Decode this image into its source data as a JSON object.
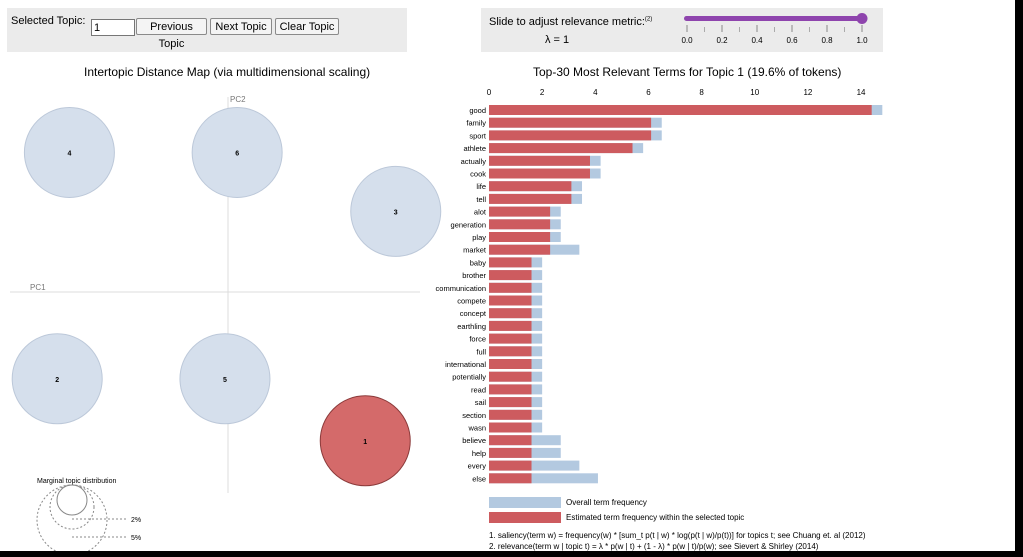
{
  "controls": {
    "selected_topic_label": "Selected Topic:",
    "selected_topic_value": "1",
    "prev_label": "Previous Topic",
    "next_label": "Next Topic",
    "clear_label": "Clear Topic",
    "slider_label": "Slide to adjust relevance metric:",
    "slider_footnote": "(2)",
    "lambda_text": "λ = 1",
    "lambda_value": 1.0,
    "slider_ticks": [
      "0.0",
      "0.2",
      "0.4",
      "0.6",
      "0.8",
      "1.0"
    ]
  },
  "colors": {
    "panel_bg": "#ebebeb",
    "slider_color": "#8e44ad",
    "bubble_fill": "#d5dfec",
    "bubble_stroke": "#bcc8d9",
    "selected_fill": "#d46a6a",
    "selected_stroke": "#8b3a3a",
    "overall_bar": "#b3c9e0",
    "topic_bar": "#cd5b5f"
  },
  "chart_data": [
    {
      "type": "scatter",
      "title": "Intertopic Distance Map (via multidimensional scaling)",
      "xlabel": "PC1",
      "ylabel": "PC2",
      "selected_topic": "1",
      "topics": [
        {
          "id": "1",
          "pc1": 0.45,
          "pc2": -0.48,
          "selected": true
        },
        {
          "id": "2",
          "pc1": -0.56,
          "pc2": -0.28,
          "selected": false
        },
        {
          "id": "3",
          "pc1": 0.55,
          "pc2": 0.26,
          "selected": false
        },
        {
          "id": "4",
          "pc1": -0.52,
          "pc2": 0.45,
          "selected": false
        },
        {
          "id": "5",
          "pc1": -0.01,
          "pc2": -0.28,
          "selected": false
        },
        {
          "id": "6",
          "pc1": 0.03,
          "pc2": 0.45,
          "selected": false
        }
      ],
      "xlim": [
        -0.62,
        0.62
      ],
      "ylim": [
        -0.62,
        0.62
      ],
      "marginal_distribution": {
        "title": "Marginal topic distribution",
        "labels": [
          "2%",
          "5%"
        ]
      }
    },
    {
      "type": "bar",
      "orientation": "horizontal",
      "title": "Top-30 Most Relevant Terms for Topic 1 (19.6% of tokens)",
      "x_ticks": [
        "0",
        "2",
        "4",
        "6",
        "8",
        "10",
        "12",
        "14"
      ],
      "xlim": [
        0,
        14.6
      ],
      "terms": [
        "good",
        "family",
        "sport",
        "athlete",
        "actually",
        "cook",
        "life",
        "tell",
        "alot",
        "generation",
        "play",
        "market",
        "baby",
        "brother",
        "communication",
        "compete",
        "concept",
        "earthling",
        "force",
        "full",
        "international",
        "potentially",
        "read",
        "sail",
        "section",
        "wasn",
        "believe",
        "help",
        "every",
        "else"
      ],
      "series": [
        {
          "name": "Overall term frequency",
          "values": [
            14.8,
            6.5,
            6.5,
            5.8,
            4.2,
            4.2,
            3.5,
            3.5,
            2.7,
            2.7,
            2.7,
            3.4,
            2.0,
            2.0,
            2.0,
            2.0,
            2.0,
            2.0,
            2.0,
            2.0,
            2.0,
            2.0,
            2.0,
            2.0,
            2.0,
            2.0,
            2.7,
            2.7,
            3.4,
            4.1
          ]
        },
        {
          "name": "Estimated term frequency within the selected topic",
          "values": [
            14.4,
            6.1,
            6.1,
            5.4,
            3.8,
            3.8,
            3.1,
            3.1,
            2.3,
            2.3,
            2.3,
            2.3,
            1.6,
            1.6,
            1.6,
            1.6,
            1.6,
            1.6,
            1.6,
            1.6,
            1.6,
            1.6,
            1.6,
            1.6,
            1.6,
            1.6,
            1.6,
            1.6,
            1.6,
            1.6
          ]
        }
      ]
    }
  ],
  "legend": {
    "overall": "Overall term frequency",
    "estimated": "Estimated term frequency within the selected topic"
  },
  "notes": {
    "n1": "1. saliency(term w) = frequency(w) * [sum_t p(t | w) * log(p(t | w)/p(t))] for topics t; see Chuang et. al (2012)",
    "n2": "2. relevance(term w | topic t) = λ * p(w | t) + (1 - λ) * p(w | t)/p(w); see Sievert & Shirley (2014)"
  }
}
